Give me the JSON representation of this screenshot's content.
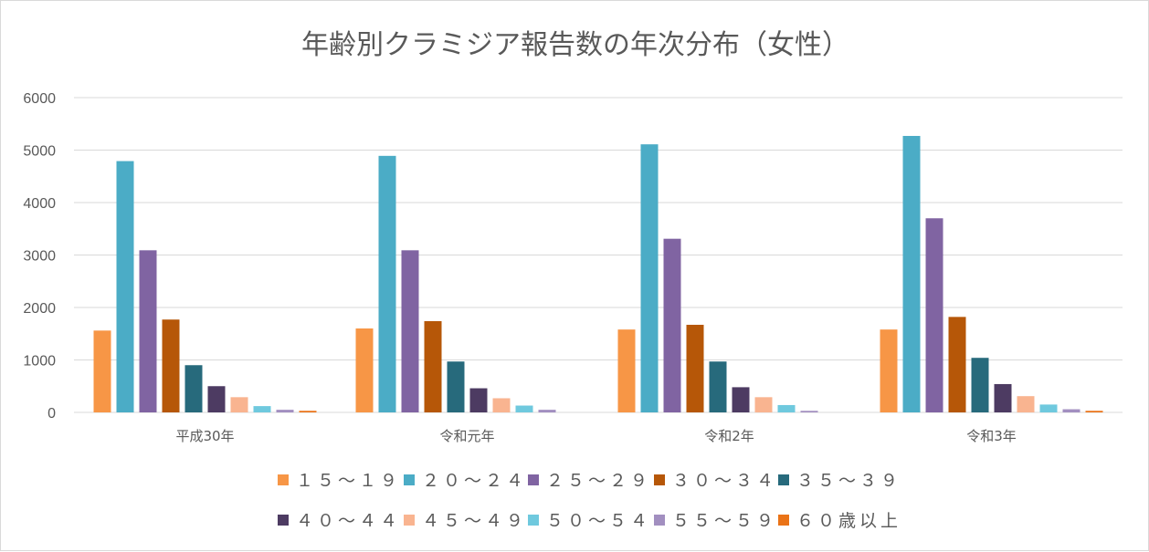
{
  "chart_data": {
    "type": "bar",
    "title": "年齢別クラミジア報告数の年次分布（女性）",
    "categories": [
      "平成30年",
      "令和元年",
      "令和2年",
      "令和3年"
    ],
    "ylim": [
      0,
      6000
    ],
    "yticks": [
      "0",
      "1000",
      "2000",
      "3000",
      "4000",
      "5000",
      "6000"
    ],
    "ytick_values": [
      0,
      1000,
      2000,
      3000,
      4000,
      5000,
      6000
    ],
    "grid": true,
    "legend_position": "bottom",
    "series": [
      {
        "name": "１５～１９",
        "color": "#F79646",
        "values": [
          1560,
          1600,
          1580,
          1580
        ]
      },
      {
        "name": "２０～２４",
        "color": "#4BACC6",
        "values": [
          4790,
          4890,
          5110,
          5270
        ]
      },
      {
        "name": "２５～２９",
        "color": "#8064A2",
        "values": [
          3090,
          3090,
          3310,
          3700
        ]
      },
      {
        "name": "３０～３４",
        "color": "#B65708",
        "values": [
          1770,
          1740,
          1670,
          1820
        ]
      },
      {
        "name": "３５～３９",
        "color": "#276A7C",
        "values": [
          900,
          970,
          970,
          1040
        ]
      },
      {
        "name": "４０～４４",
        "color": "#4D3B62",
        "values": [
          500,
          460,
          480,
          540
        ]
      },
      {
        "name": "４５～４９",
        "color": "#F9B490",
        "values": [
          290,
          270,
          290,
          310
        ]
      },
      {
        "name": "５０～５４",
        "color": "#6FC9DE",
        "values": [
          120,
          130,
          140,
          150
        ]
      },
      {
        "name": "５５～５９",
        "color": "#A28FC0",
        "values": [
          50,
          50,
          30,
          60
        ]
      },
      {
        "name": "６０歳以上",
        "color": "#EA7317",
        "values": [
          30,
          0,
          0,
          30
        ]
      }
    ]
  }
}
